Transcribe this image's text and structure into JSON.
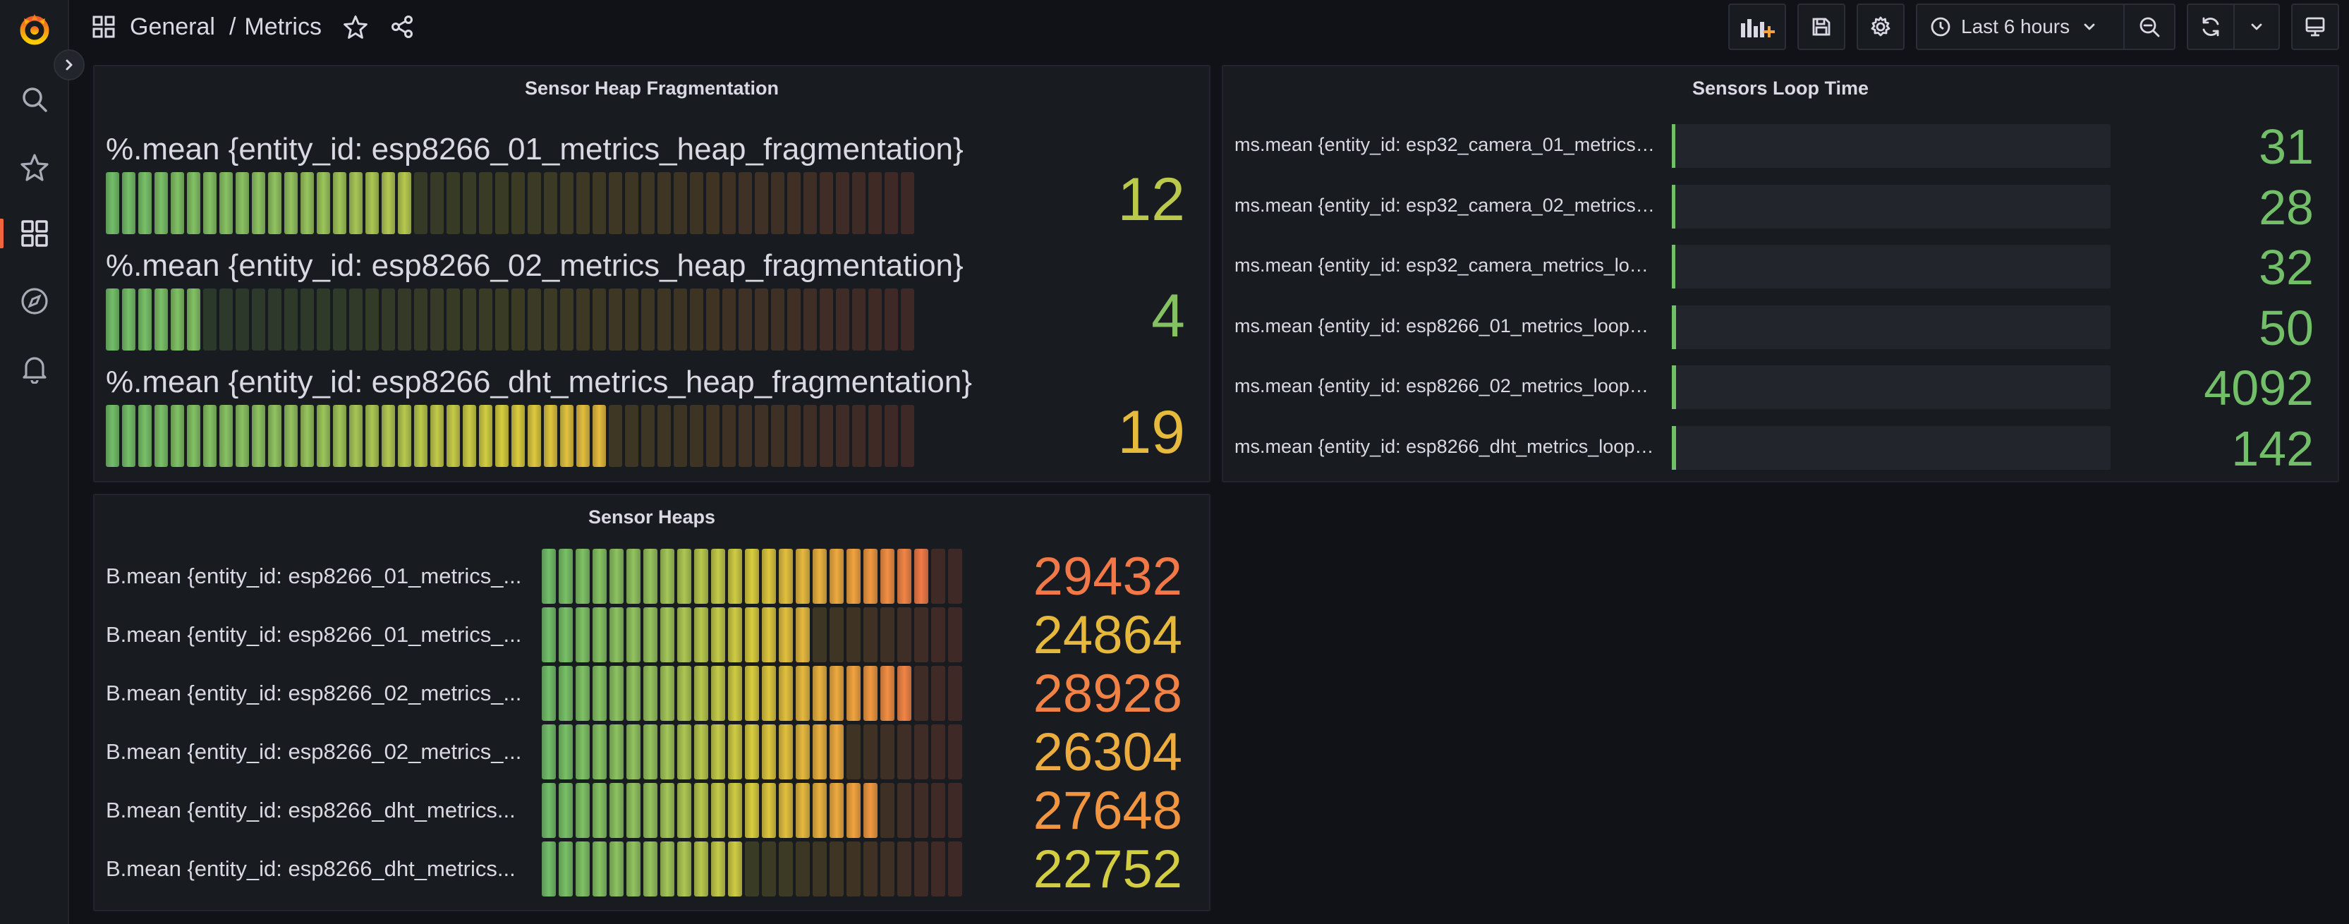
{
  "breadcrumb": {
    "folder": "General",
    "separator": "/",
    "dashboard": "Metrics"
  },
  "toolbar": {
    "time_range": "Last 6 hours"
  },
  "colors": {
    "accent": "#f0653a",
    "green": "#73bf69",
    "yellow": "#dace3d",
    "orange": "#f2a33e",
    "red": "#f2674b",
    "lime": "#98c45d"
  },
  "panels": {
    "heap_fragmentation": {
      "title": "Sensor Heap Fragmentation",
      "rows": [
        {
          "label": "%.mean {entity_id: esp8266_01_metrics_heap_fragmentation}",
          "value": "12",
          "fraction": 0.38
        },
        {
          "label": "%.mean {entity_id: esp8266_02_metrics_heap_fragmentation}",
          "value": "4",
          "fraction": 0.115
        },
        {
          "label": "%.mean {entity_id: esp8266_dht_metrics_heap_fragmentation}",
          "value": "19",
          "fraction": 0.615
        }
      ]
    },
    "loop_time": {
      "title": "Sensors Loop Time",
      "rows": [
        {
          "label": "ms.mean {entity_id: esp32_camera_01_metrics_l...",
          "value": "31",
          "fraction": 0.008
        },
        {
          "label": "ms.mean {entity_id: esp32_camera_02_metrics_l...",
          "value": "28",
          "fraction": 0.007
        },
        {
          "label": "ms.mean {entity_id: esp32_camera_metrics_loop...",
          "value": "32",
          "fraction": 0.008
        },
        {
          "label": "ms.mean {entity_id: esp8266_01_metrics_loop_ti...",
          "value": "50",
          "fraction": 0.009
        },
        {
          "label": "ms.mean {entity_id: esp8266_02_metrics_loop_ti...",
          "value": "4092",
          "fraction": 0.009
        },
        {
          "label": "ms.mean {entity_id: esp8266_dht_metrics_loop_t...",
          "value": "142",
          "fraction": 0.009
        }
      ]
    },
    "heaps": {
      "title": "Sensor Heaps",
      "rows": [
        {
          "label": "B.mean {entity_id: esp8266_01_metrics_...",
          "value": "29432",
          "fraction": 0.93
        },
        {
          "label": "B.mean {entity_id: esp8266_01_metrics_...",
          "value": "24864",
          "fraction": 0.62
        },
        {
          "label": "B.mean {entity_id: esp8266_02_metrics_...",
          "value": "28928",
          "fraction": 0.89
        },
        {
          "label": "B.mean {entity_id: esp8266_02_metrics_...",
          "value": "26304",
          "fraction": 0.7
        },
        {
          "label": "B.mean {entity_id: esp8266_dht_metrics...",
          "value": "27648",
          "fraction": 0.81
        },
        {
          "label": "B.mean {entity_id: esp8266_dht_metrics...",
          "value": "22752",
          "fraction": 0.47
        }
      ]
    }
  }
}
